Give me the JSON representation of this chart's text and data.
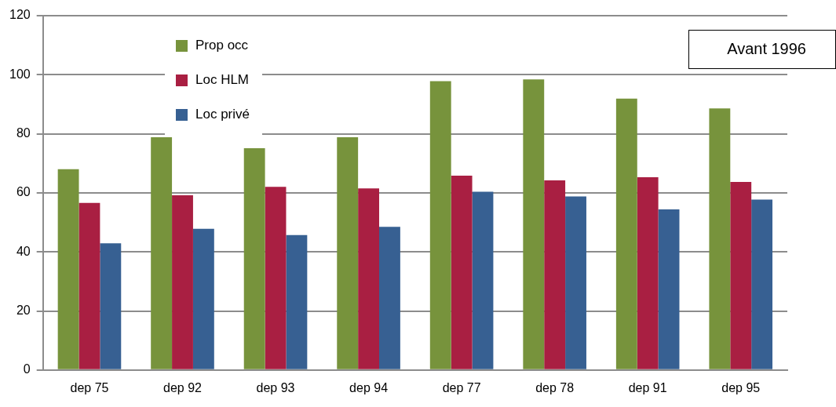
{
  "chart_data": {
    "type": "bar",
    "categories": [
      "dep 75",
      "dep 92",
      "dep 93",
      "dep 94",
      "dep 77",
      "dep 78",
      "dep 91",
      "dep 95"
    ],
    "series": [
      {
        "name": "Prop occ",
        "color": "#77933c",
        "values": [
          68,
          78.8,
          75.1,
          78.8,
          97.8,
          98.4,
          91.9,
          88.6
        ]
      },
      {
        "name": "Loc HLM",
        "color": "#a91f42",
        "values": [
          56.6,
          59.2,
          62,
          61.5,
          65.8,
          64.2,
          65.3,
          63.7
        ]
      },
      {
        "name": "Loc privé",
        "color": "#376092",
        "values": [
          42.9,
          47.8,
          45.7,
          48.5,
          60.4,
          58.8,
          54.4,
          57.7
        ]
      }
    ],
    "ylim": [
      0,
      120
    ],
    "yticks": [
      0,
      20,
      40,
      60,
      80,
      100,
      120
    ],
    "grid": "y",
    "legend": "top left",
    "annotations": [
      "Avant 1996"
    ]
  }
}
